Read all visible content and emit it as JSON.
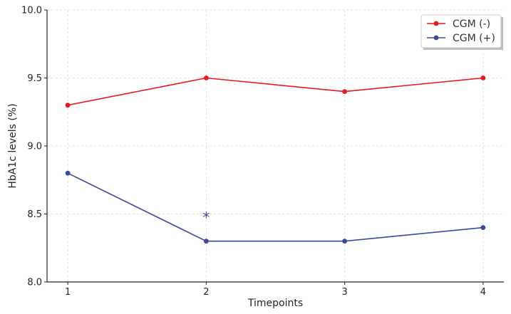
{
  "chart_data": {
    "type": "line",
    "title": "",
    "xlabel": "Timepoints",
    "ylabel": "HbA1c levels (%)",
    "x": [
      1,
      2,
      3,
      4
    ],
    "x_tick_labels": [
      "1",
      "2",
      "3",
      "4"
    ],
    "xlim": [
      0.85,
      4.15
    ],
    "ylim": [
      8.0,
      10.0
    ],
    "y_ticks": [
      8.0,
      8.5,
      9.0,
      9.5,
      10.0
    ],
    "y_tick_labels": [
      "8.0",
      "8.5",
      "9.0",
      "9.5",
      "10.0"
    ],
    "grid": true,
    "legend_position": "top-right",
    "series": [
      {
        "name": "CGM (-)",
        "color": "#e8191e",
        "values": [
          9.3,
          9.5,
          9.4,
          9.5
        ]
      },
      {
        "name": "CGM (+)",
        "color": "#3a4a9a",
        "values": [
          8.8,
          8.3,
          8.3,
          8.4
        ]
      }
    ],
    "annotations": [
      {
        "text": "*",
        "x": 2,
        "y": 8.5,
        "color": "#3a4a9a"
      }
    ]
  }
}
